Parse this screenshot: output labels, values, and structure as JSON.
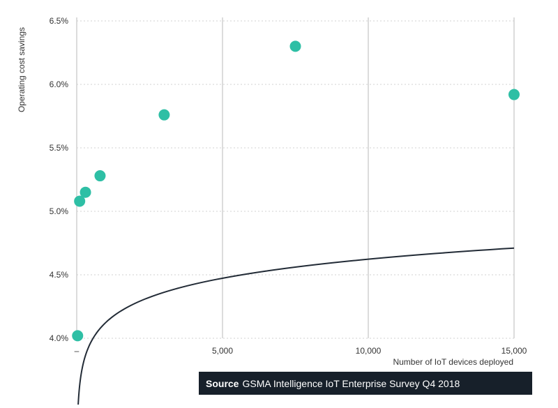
{
  "chart_data": {
    "type": "scatter",
    "xlabel": "Number of IoT devices deployed",
    "ylabel": "Operating cost savings",
    "xlim": [
      0,
      15000
    ],
    "ylim": [
      4.0,
      6.5
    ],
    "x_ticks": [
      0,
      5000,
      10000,
      15000
    ],
    "x_tick_labels": [
      "–",
      "5,000",
      "10,000",
      "15,000"
    ],
    "y_ticks": [
      4.0,
      4.5,
      5.0,
      5.5,
      6.0,
      6.5
    ],
    "y_tick_labels": [
      "4.0%",
      "4.5%",
      "5.0%",
      "5.5%",
      "6.0%",
      "6.5%"
    ],
    "grid": {
      "vertical": "solid",
      "horizontal": "dotted"
    },
    "points": [
      {
        "x": 30,
        "y": 4.02
      },
      {
        "x": 100,
        "y": 5.08
      },
      {
        "x": 300,
        "y": 5.15
      },
      {
        "x": 800,
        "y": 5.28
      },
      {
        "x": 3000,
        "y": 5.76
      },
      {
        "x": 7500,
        "y": 6.3
      },
      {
        "x": 15000,
        "y": 5.92
      }
    ],
    "trendline": {
      "type": "logarithmic",
      "x_start": 50,
      "x_end": 15000,
      "a": 4.125,
      "b": 0.2162
    },
    "colors": {
      "points": "#2ebfa5",
      "trendline": "#222b36",
      "grid": "#d0d0d0",
      "source_bg": "#17202a"
    }
  },
  "source": {
    "bold": "Source",
    "text": "GSMA Intelligence IoT Enterprise Survey Q4 2018"
  }
}
